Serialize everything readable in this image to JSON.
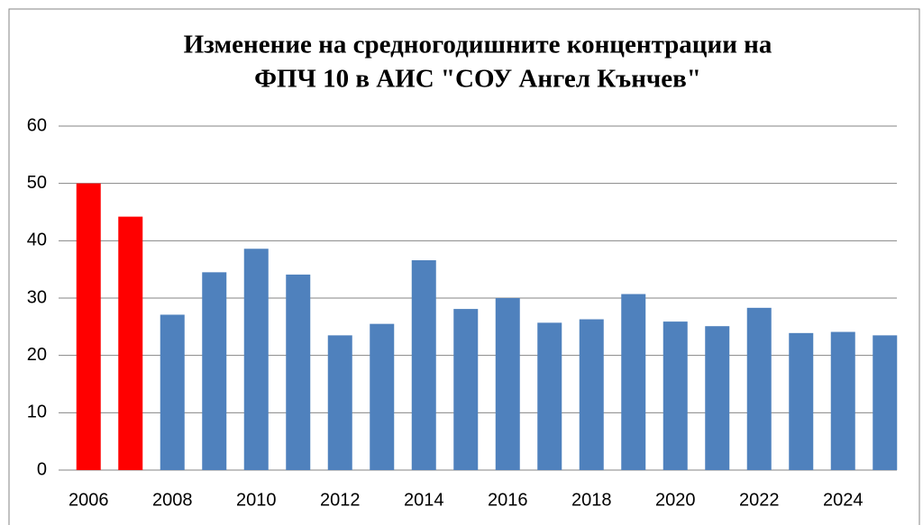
{
  "chart_data": {
    "type": "bar",
    "title": [
      "Изменение на средногодишните концентрации на",
      "ФПЧ 10 в АИС \"СОУ Ангел Кънчев\""
    ],
    "categories": [
      "2006",
      null,
      "2008",
      null,
      "2010",
      null,
      "2012",
      null,
      "2014",
      null,
      "2016",
      null,
      "2018",
      null,
      "2020",
      null,
      "2022",
      null,
      "2024",
      null
    ],
    "values": [
      50,
      44.2,
      27.1,
      34.5,
      38.6,
      34.1,
      23.5,
      25.5,
      36.6,
      28.1,
      30,
      25.7,
      26.3,
      30.7,
      25.9,
      25.1,
      28.3,
      23.9,
      24.1,
      23.5
    ],
    "colors": [
      "#ff0000",
      "#ff0000",
      "#4f81bd",
      "#4f81bd",
      "#4f81bd",
      "#4f81bd",
      "#4f81bd",
      "#4f81bd",
      "#4f81bd",
      "#4f81bd",
      "#4f81bd",
      "#4f81bd",
      "#4f81bd",
      "#4f81bd",
      "#4f81bd",
      "#4f81bd",
      "#4f81bd",
      "#4f81bd",
      "#4f81bd",
      "#4f81bd"
    ],
    "ylim": [
      0,
      60
    ],
    "yticks": [
      0,
      10,
      20,
      30,
      40,
      50,
      60
    ],
    "grid": true
  }
}
